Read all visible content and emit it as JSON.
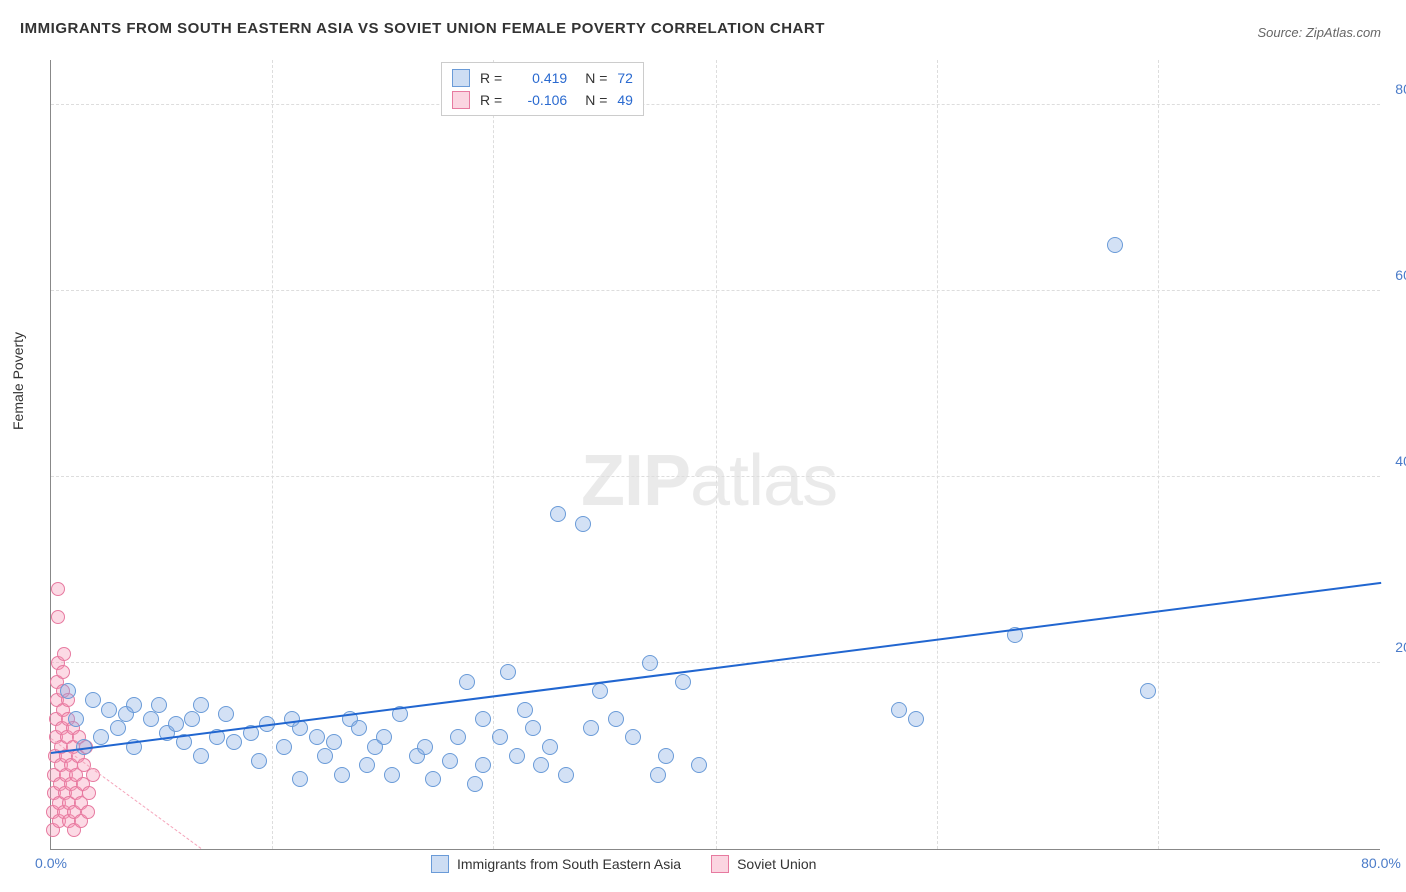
{
  "title": "IMMIGRANTS FROM SOUTH EASTERN ASIA VS SOVIET UNION FEMALE POVERTY CORRELATION CHART",
  "source": "Source: ZipAtlas.com",
  "y_axis_label": "Female Poverty",
  "watermark_zip": "ZIP",
  "watermark_atlas": "atlas",
  "chart": {
    "type": "scatter",
    "xlim": [
      0,
      80
    ],
    "ylim": [
      0,
      85
    ],
    "x_ticks": [
      {
        "v": 0,
        "label": "0.0%"
      },
      {
        "v": 80,
        "label": "80.0%"
      }
    ],
    "y_ticks": [
      {
        "v": 20,
        "label": "20.0%"
      },
      {
        "v": 40,
        "label": "40.0%"
      },
      {
        "v": 60,
        "label": "60.0%"
      },
      {
        "v": 80,
        "label": "80.0%"
      }
    ],
    "grid_x": [
      13.3,
      26.6,
      40,
      53.3,
      66.6
    ],
    "grid_color": "#dddddd",
    "background": "#ffffff",
    "axis_color": "#888888",
    "tick_color": "#4a7bc8",
    "marker_size_blue": 16,
    "marker_size_pink": 14
  },
  "legend_top": {
    "rows": [
      {
        "swatch": "blue",
        "r_label": "R =",
        "r": "0.419",
        "n_label": "N =",
        "n": "72"
      },
      {
        "swatch": "pink",
        "r_label": "R =",
        "r": "-0.106",
        "n_label": "N =",
        "n": "49"
      }
    ]
  },
  "legend_bottom": {
    "items": [
      {
        "swatch": "blue",
        "label": "Immigrants from South Eastern Asia"
      },
      {
        "swatch": "pink",
        "label": "Soviet Union"
      }
    ]
  },
  "series_blue": {
    "color_fill": "rgba(130,170,225,0.35)",
    "color_stroke": "#6a9bd8",
    "trend": {
      "x1": 0,
      "y1": 10.2,
      "x2": 80,
      "y2": 28.5,
      "color": "#2166d0",
      "width": 2
    },
    "points": [
      [
        1,
        17
      ],
      [
        1.5,
        14
      ],
      [
        2,
        11
      ],
      [
        2.5,
        16
      ],
      [
        3,
        12
      ],
      [
        3.5,
        15
      ],
      [
        4,
        13
      ],
      [
        4.5,
        14.5
      ],
      [
        5,
        15.5
      ],
      [
        5,
        11
      ],
      [
        6,
        14
      ],
      [
        6.5,
        15.5
      ],
      [
        7,
        12.5
      ],
      [
        7.5,
        13.5
      ],
      [
        8,
        11.5
      ],
      [
        8.5,
        14
      ],
      [
        9,
        10
      ],
      [
        9,
        15.5
      ],
      [
        10,
        12
      ],
      [
        10.5,
        14.5
      ],
      [
        11,
        11.5
      ],
      [
        12,
        12.5
      ],
      [
        12.5,
        9.5
      ],
      [
        13,
        13.5
      ],
      [
        14,
        11
      ],
      [
        14.5,
        14
      ],
      [
        15,
        7.5
      ],
      [
        15,
        13
      ],
      [
        16,
        12
      ],
      [
        16.5,
        10
      ],
      [
        17,
        11.5
      ],
      [
        17.5,
        8
      ],
      [
        18,
        14
      ],
      [
        18.5,
        13
      ],
      [
        19,
        9
      ],
      [
        19.5,
        11
      ],
      [
        20,
        12
      ],
      [
        20.5,
        8
      ],
      [
        21,
        14.5
      ],
      [
        22,
        10
      ],
      [
        22.5,
        11
      ],
      [
        23,
        7.5
      ],
      [
        24,
        9.5
      ],
      [
        24.5,
        12
      ],
      [
        25,
        18
      ],
      [
        25.5,
        7
      ],
      [
        26,
        9
      ],
      [
        26,
        14
      ],
      [
        27,
        12
      ],
      [
        27.5,
        19
      ],
      [
        28,
        10
      ],
      [
        28.5,
        15
      ],
      [
        29,
        13
      ],
      [
        29.5,
        9
      ],
      [
        30,
        11
      ],
      [
        30.5,
        36
      ],
      [
        31,
        8
      ],
      [
        32,
        35
      ],
      [
        32.5,
        13
      ],
      [
        33,
        17
      ],
      [
        34,
        14
      ],
      [
        35,
        12
      ],
      [
        36,
        20
      ],
      [
        36.5,
        8
      ],
      [
        37,
        10
      ],
      [
        38,
        18
      ],
      [
        39,
        9
      ],
      [
        51,
        15
      ],
      [
        52,
        14
      ],
      [
        58,
        23
      ],
      [
        64,
        65
      ],
      [
        66,
        17
      ]
    ]
  },
  "series_pink": {
    "color_fill": "rgba(245,150,180,0.35)",
    "color_stroke": "#e77aa0",
    "trend": {
      "x1": 0,
      "y1": 11.8,
      "x2": 9,
      "y2": 0,
      "color": "#f5a5bb",
      "width": 1.5,
      "dashed": true
    },
    "points": [
      [
        0.1,
        2
      ],
      [
        0.15,
        4
      ],
      [
        0.2,
        6
      ],
      [
        0.2,
        8
      ],
      [
        0.25,
        10
      ],
      [
        0.3,
        12
      ],
      [
        0.3,
        14
      ],
      [
        0.35,
        16
      ],
      [
        0.35,
        18
      ],
      [
        0.4,
        20
      ],
      [
        0.4,
        25
      ],
      [
        0.45,
        28
      ],
      [
        0.5,
        3
      ],
      [
        0.5,
        5
      ],
      [
        0.55,
        7
      ],
      [
        0.6,
        9
      ],
      [
        0.6,
        11
      ],
      [
        0.65,
        13
      ],
      [
        0.7,
        15
      ],
      [
        0.7,
        17
      ],
      [
        0.75,
        19
      ],
      [
        0.8,
        21
      ],
      [
        0.8,
        4
      ],
      [
        0.85,
        6
      ],
      [
        0.9,
        8
      ],
      [
        0.9,
        10
      ],
      [
        0.95,
        12
      ],
      [
        1,
        14
      ],
      [
        1,
        16
      ],
      [
        1.1,
        3
      ],
      [
        1.1,
        5
      ],
      [
        1.2,
        7
      ],
      [
        1.2,
        9
      ],
      [
        1.3,
        11
      ],
      [
        1.3,
        13
      ],
      [
        1.4,
        2
      ],
      [
        1.4,
        4
      ],
      [
        1.5,
        6
      ],
      [
        1.5,
        8
      ],
      [
        1.6,
        10
      ],
      [
        1.7,
        12
      ],
      [
        1.8,
        3
      ],
      [
        1.8,
        5
      ],
      [
        1.9,
        7
      ],
      [
        2,
        9
      ],
      [
        2.1,
        11
      ],
      [
        2.2,
        4
      ],
      [
        2.3,
        6
      ],
      [
        2.5,
        8
      ]
    ]
  }
}
